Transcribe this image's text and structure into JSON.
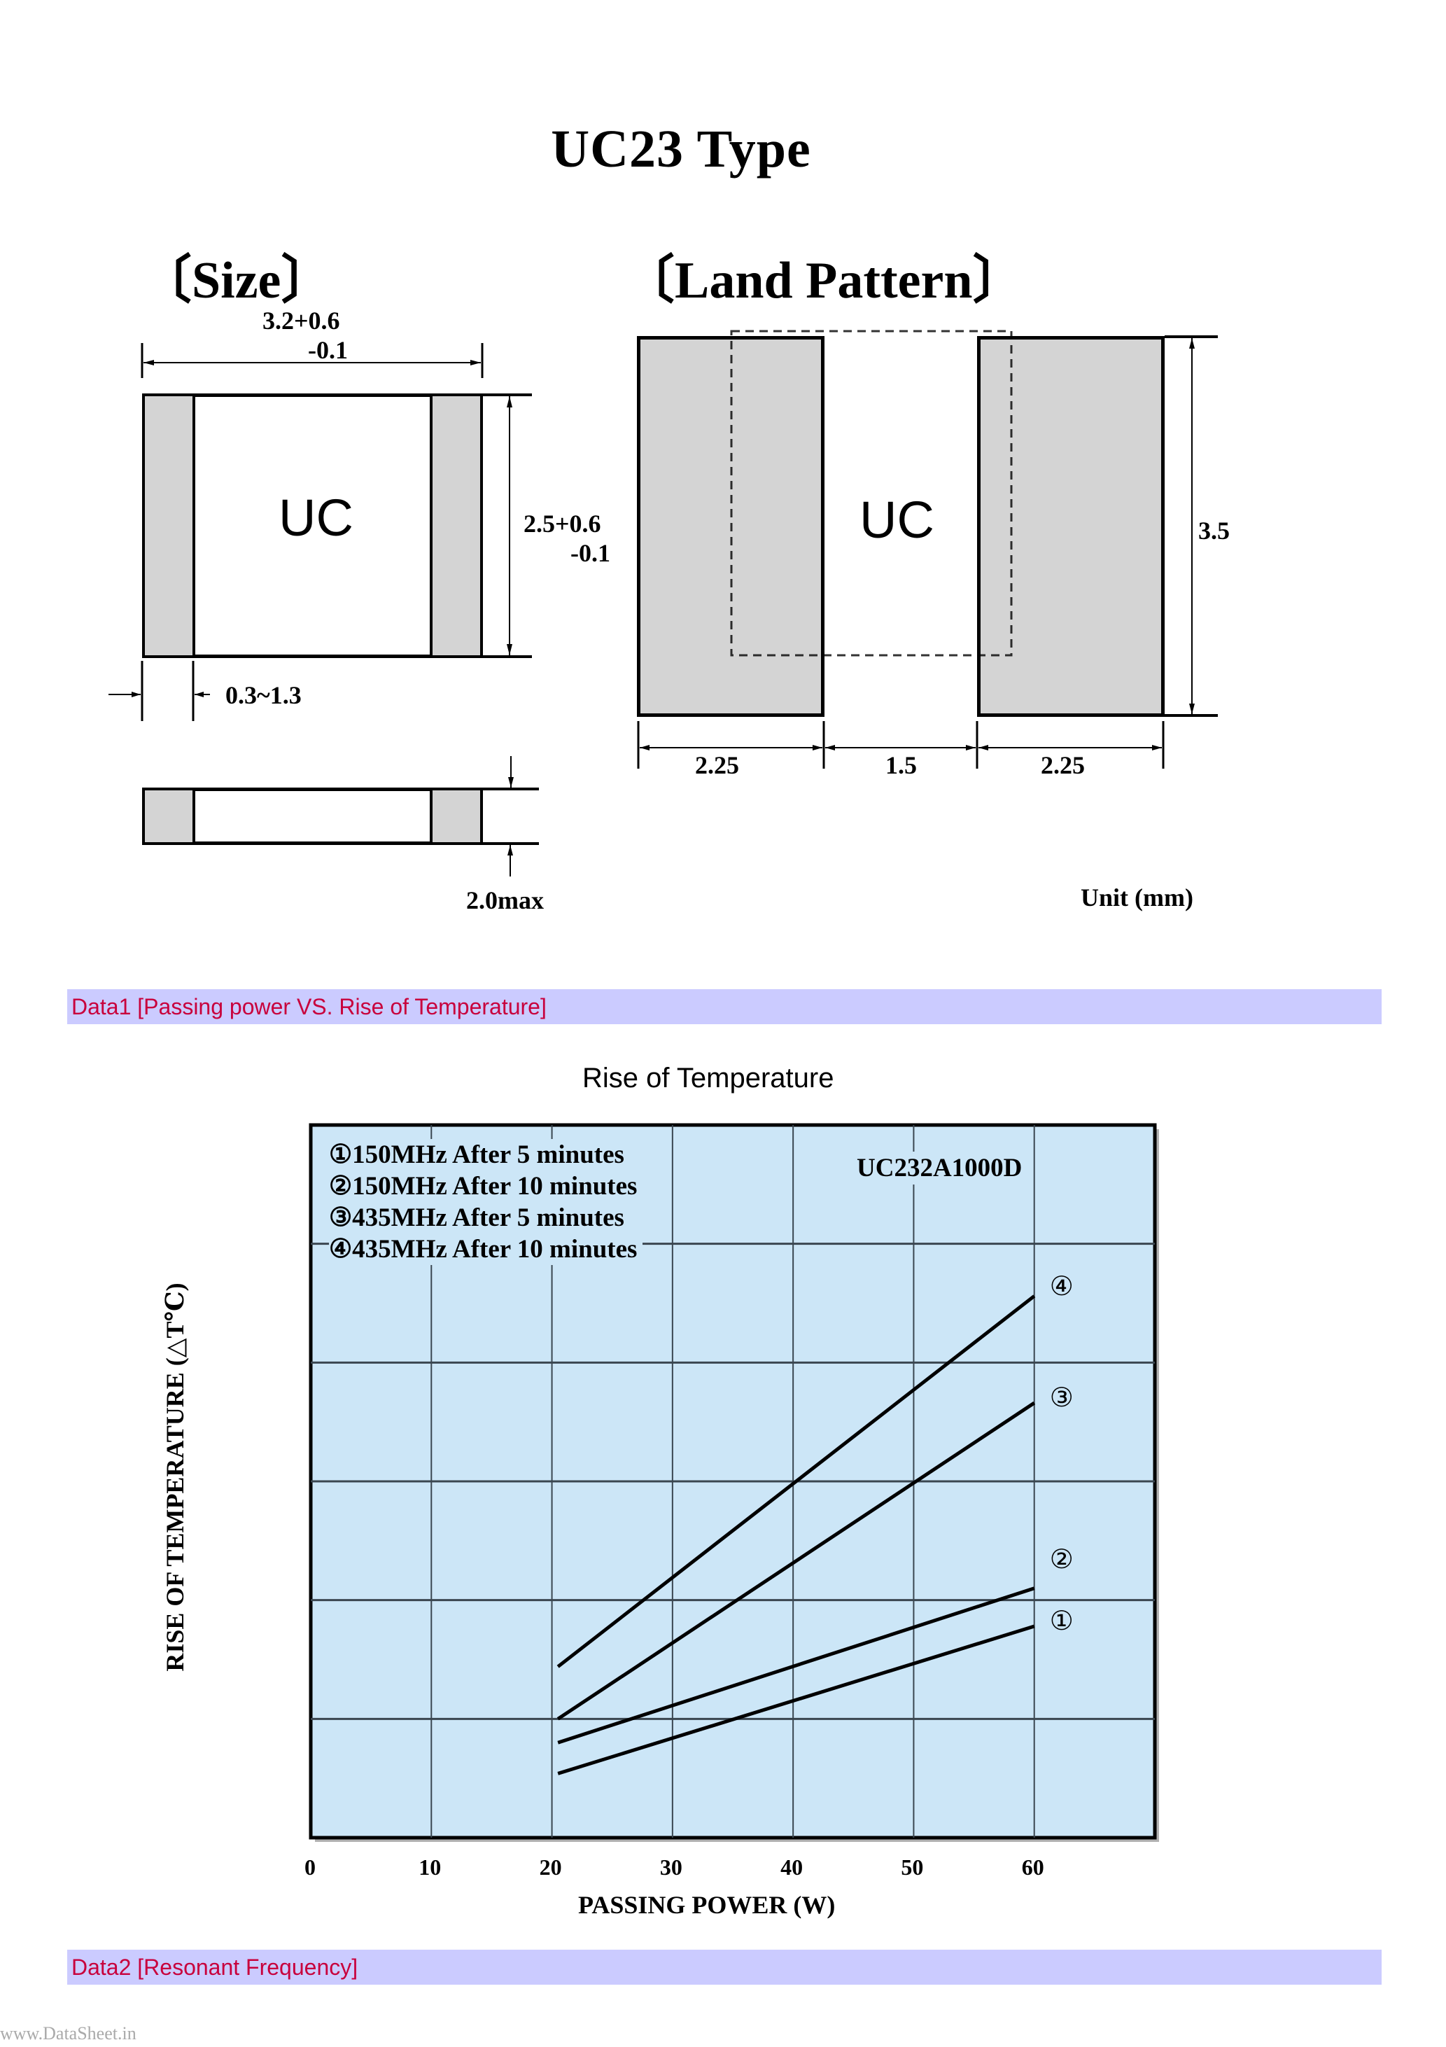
{
  "title": "UC23 Type",
  "size_section": {
    "heading": "〔Size〕",
    "chip_label": "UC",
    "length_nominal": "3.2+0.6",
    "length_minus": "-0.1",
    "width_nominal": "2.5+0.6",
    "width_minus": "-0.1",
    "termination": "0.3~1.3",
    "height": "2.0max"
  },
  "land_section": {
    "heading": "〔Land Pattern〕",
    "chip_label": "UC",
    "pad_width_left": "2.25",
    "gap": "1.5",
    "pad_width_right": "2.25",
    "pad_height": "3.5",
    "unit": "Unit (mm)"
  },
  "banners": [
    {
      "label": "Data1  [Passing power VS. Rise of Temperature]"
    },
    {
      "label": "Data2  [Resonant Frequency]"
    }
  ],
  "colors": {
    "banner_bg": "#cbcbff",
    "banner_text": "#c8003c",
    "plot_bg": "#cce6f7",
    "pad_fill": "#d4d4d4"
  },
  "chart_data": {
    "type": "line",
    "title": "Rise of Temperature",
    "annotation": "UC232A1000D",
    "xlabel": "PASSING POWER (W)",
    "ylabel": "RISE OF TEMPERATURE (△T℃)",
    "xlim": [
      0,
      70
    ],
    "ylim": [
      0,
      30
    ],
    "xticks": [
      "0",
      "10",
      "20",
      "30",
      "40",
      "50",
      "60"
    ],
    "yticks": [
      "0",
      "5",
      "10",
      "15",
      "20",
      "25",
      "30"
    ],
    "grid": true,
    "legend_position": "top-left inside",
    "series": [
      {
        "marker": "①",
        "name": "①150MHz After 5  minutes",
        "x": [
          20.5,
          60
        ],
        "y": [
          2.7,
          8.9
        ]
      },
      {
        "marker": "②",
        "name": "②150MHz After 10 minutes",
        "x": [
          20.5,
          60
        ],
        "y": [
          4.0,
          10.5
        ]
      },
      {
        "marker": "③",
        "name": "③435MHz After 5  minutes",
        "x": [
          20.5,
          60
        ],
        "y": [
          5.0,
          18.3
        ]
      },
      {
        "marker": "④",
        "name": "④435MHz After 10 minutes",
        "x": [
          20.5,
          60
        ],
        "y": [
          7.2,
          22.8
        ]
      }
    ]
  },
  "watermark": "www.DataSheet.in"
}
